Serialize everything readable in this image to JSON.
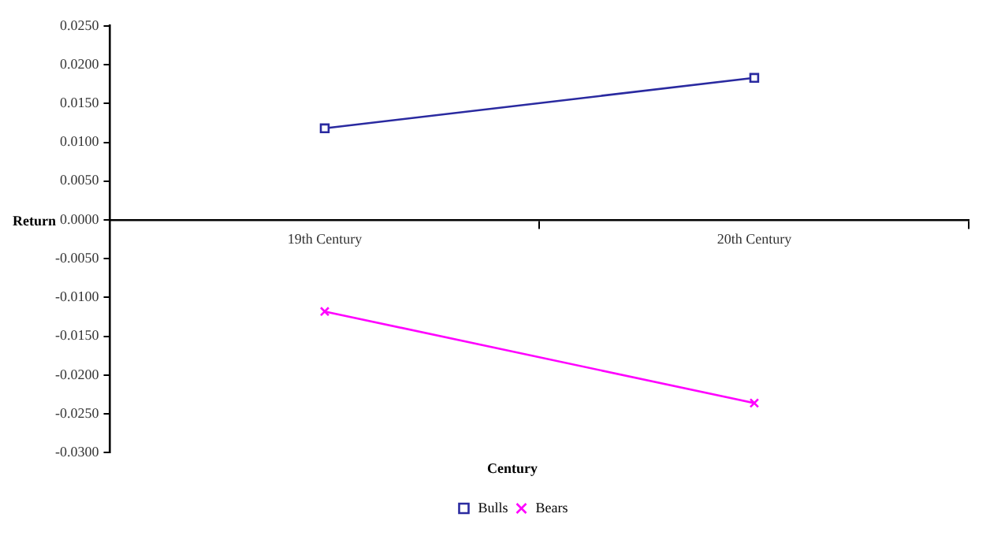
{
  "chart_data": {
    "type": "line",
    "xlabel": "Century",
    "ylabel": "Return",
    "categories": [
      "19th Century",
      "20th Century"
    ],
    "series": [
      {
        "name": "Bulls",
        "color": "#2a2aa0",
        "values": [
          0.0118,
          0.0183
        ],
        "marker": "square"
      },
      {
        "name": "Bears",
        "color": "#ff00ff",
        "values": [
          -0.0118,
          -0.0236
        ],
        "marker": "cross"
      }
    ],
    "ylim": [
      -0.03,
      0.025
    ],
    "yticks": [
      {
        "value": -0.03,
        "label": "-0.0300"
      },
      {
        "value": -0.025,
        "label": "-0.0250"
      },
      {
        "value": -0.02,
        "label": "-0.0200"
      },
      {
        "value": -0.015,
        "label": "-0.0150"
      },
      {
        "value": -0.01,
        "label": "-0.0100"
      },
      {
        "value": -0.005,
        "label": "-0.0050"
      },
      {
        "value": 0,
        "label": "0.0000"
      },
      {
        "value": 0.005,
        "label": "0.0050"
      },
      {
        "value": 0.01,
        "label": "0.0100"
      },
      {
        "value": 0.015,
        "label": "0.0150"
      },
      {
        "value": 0.02,
        "label": "0.0200"
      },
      {
        "value": 0.025,
        "label": "0.0250"
      }
    ],
    "grid": false,
    "legend": "bottom",
    "line_style": "solid"
  }
}
